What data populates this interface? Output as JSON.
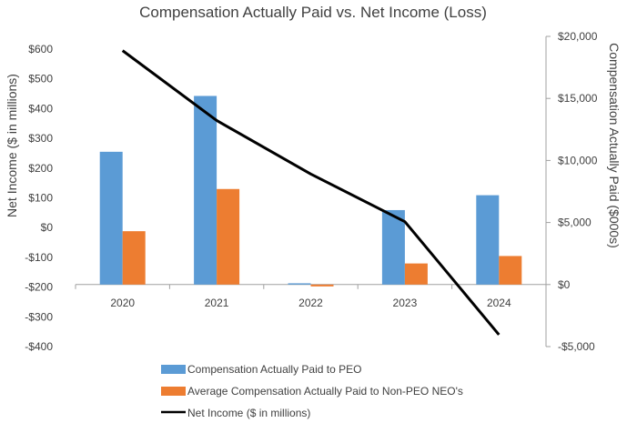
{
  "chart_data": {
    "type": "bar",
    "title": "Compensation Actually Paid vs. Net Income (Loss)",
    "categories": [
      "2020",
      "2021",
      "2022",
      "2023",
      "2024"
    ],
    "left_axis": {
      "label": "Net Income ($ in millions)",
      "ylim": [
        -400,
        600
      ],
      "ticks": [
        600,
        500,
        400,
        300,
        200,
        100,
        0,
        -100,
        -200,
        -300,
        -400
      ],
      "tick_labels": [
        "$600",
        "$500",
        "$400",
        "$300",
        "$200",
        "$100",
        "$0",
        "-$100",
        "-$200",
        "-$300",
        "-$400"
      ]
    },
    "right_axis": {
      "label": "Compensation Actually Paid ($000s)",
      "ylim": [
        -5000,
        20000
      ],
      "ticks": [
        20000,
        15000,
        10000,
        5000,
        0,
        -5000
      ],
      "tick_labels": [
        "$20,000",
        "$15,000",
        "$10,000",
        "$5,000",
        "$0",
        "-$5,000"
      ]
    },
    "series": [
      {
        "name": "Compensation Actually Paid to PEO",
        "axis": "right",
        "kind": "bar",
        "color": "#5b9bd5",
        "values": [
          10700,
          15200,
          100,
          6000,
          7200
        ]
      },
      {
        "name": "Average Compensation Actually Paid to Non-PEO NEO's",
        "axis": "right",
        "kind": "bar",
        "color": "#ed7d31",
        "values": [
          4300,
          7700,
          -150,
          1700,
          2300
        ]
      },
      {
        "name": "Net Income ($ in millions)",
        "axis": "left",
        "kind": "line",
        "color": "#000000",
        "values": [
          595,
          360,
          180,
          20,
          -360
        ]
      }
    ],
    "legend_position": "bottom"
  }
}
